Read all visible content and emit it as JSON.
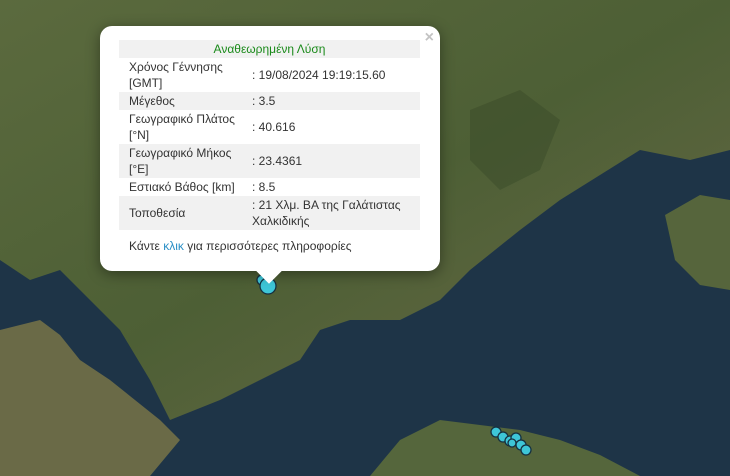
{
  "popup": {
    "title": "Αναθεωρημένη Λύση",
    "close": "×",
    "rows": [
      {
        "label": "Χρόνος Γέννησης [GMT]",
        "value": ": 19/08/2024 19:19:15.60"
      },
      {
        "label": "Μέγεθος",
        "value": ": 3.5"
      },
      {
        "label": "Γεωγραφικό Πλάτος [°N]",
        "value": ": 40.616"
      },
      {
        "label": "Γεωγραφικό Μήκος [°E]",
        "value": ": 23.4361"
      },
      {
        "label": "Εστιακό Βάθος [km]",
        "value": ": 8.5"
      },
      {
        "label": "Τοποθεσία",
        "value": ": 21 Χλμ. ΒΑ της Γαλάτιστας Χαλκιδικής"
      }
    ],
    "more_prefix": "Κάντε ",
    "more_link": "κλικ",
    "more_suffix": " για περισσότερες πληροφορίες"
  },
  "colors": {
    "marker": "#3ec6d8",
    "title": "#1a8a1a",
    "link": "#2a8fc6"
  }
}
